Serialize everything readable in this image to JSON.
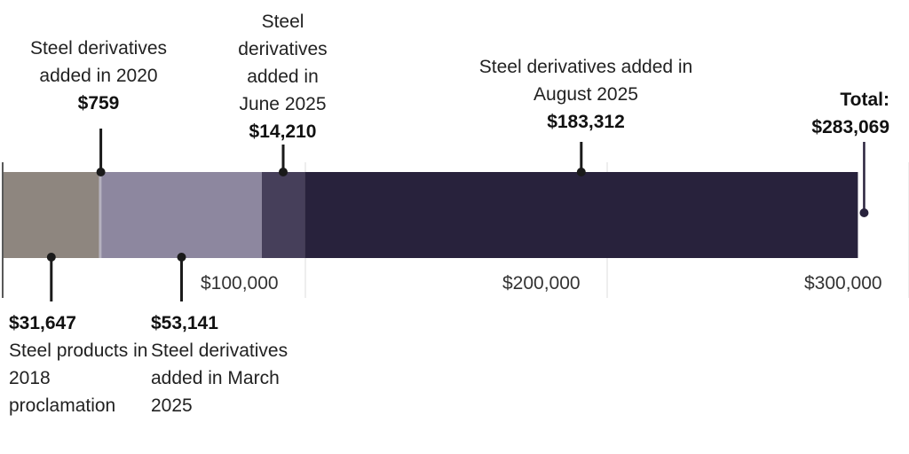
{
  "chart_data": {
    "type": "bar",
    "orientation": "horizontal",
    "stacked": true,
    "xlim": [
      0,
      300000
    ],
    "ticks": [
      {
        "value": 100000,
        "label": "$100,000"
      },
      {
        "value": 200000,
        "label": "$200,000"
      },
      {
        "value": 300000,
        "label": "$300,000"
      }
    ],
    "segments": [
      {
        "value": 31647,
        "label_value": "$31,647",
        "label_text": "Steel products in 2018 proclamation",
        "color": "#8e867f",
        "placement": "below"
      },
      {
        "value": 759,
        "label_value": "$759",
        "label_text": "Steel derivatives added in 2020",
        "color": "#b5b1bf",
        "placement": "above"
      },
      {
        "value": 53141,
        "label_value": "$53,141",
        "label_text": "Steel derivatives added in March 2025",
        "color": "#8d879f",
        "placement": "below"
      },
      {
        "value": 14210,
        "label_value": "$14,210",
        "label_text": "Steel derivatives added in June 2025",
        "color": "#463f5a",
        "placement": "above"
      },
      {
        "value": 183312,
        "label_value": "$183,312",
        "label_text": "Steel derivatives added in August 2025",
        "color": "#28223c",
        "placement": "above"
      }
    ],
    "total": {
      "value": 283069,
      "label_title": "Total:",
      "label_value": "$283,069"
    }
  }
}
